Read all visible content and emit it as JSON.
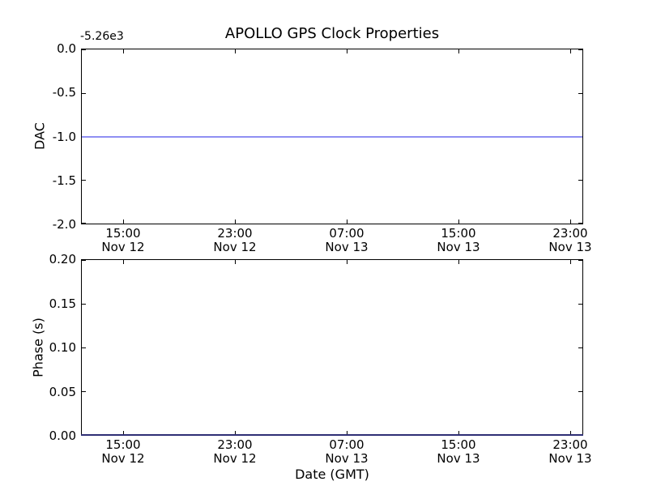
{
  "title": "APOLLO GPS Clock Properties",
  "chart_data": [
    {
      "type": "line",
      "title": "APOLLO GPS Clock Properties",
      "ylabel": "DAC",
      "xlabel": "",
      "offset_text": "-5.26e3",
      "ylim": [
        -2.0,
        0.0
      ],
      "ytick_labels": [
        "0.0",
        "-0.5",
        "-1.0",
        "-1.5",
        "-2.0"
      ],
      "x_tick_times": [
        "15:00",
        "23:00",
        "07:00",
        "15:00",
        "23:00"
      ],
      "x_tick_dates": [
        "Nov 12",
        "Nov 12",
        "Nov 13",
        "Nov 13",
        "Nov 13"
      ],
      "xlim": [
        "Nov 12 12:00",
        "Nov 13 24:00"
      ],
      "grid": false,
      "legend": "none",
      "series": [
        {
          "name": "DAC",
          "constant_y": -1.0,
          "actual_value_with_offset": -5261.0,
          "color": "#8f8ff2",
          "description": "flat horizontal line at DAC = -1.0 (axis offset -5.26e3) spanning full time range"
        }
      ]
    },
    {
      "type": "line",
      "ylabel": "Phase (s)",
      "xlabel": "Date (GMT)",
      "ylim": [
        0.0,
        0.2
      ],
      "ytick_labels": [
        "0.20",
        "0.15",
        "0.10",
        "0.05",
        "0.00"
      ],
      "x_tick_times": [
        "15:00",
        "23:00",
        "07:00",
        "15:00",
        "23:00"
      ],
      "x_tick_dates": [
        "Nov 12",
        "Nov 12",
        "Nov 13",
        "Nov 13",
        "Nov 13"
      ],
      "xlim": [
        "Nov 12 12:00",
        "Nov 13 24:00"
      ],
      "grid": false,
      "legend": "none",
      "series": [
        {
          "name": "Phase",
          "constant_y": 0.0,
          "color": "#2e2e75",
          "description": "flat line at Phase = 0.00 s lying on the bottom axis spine (appears navy over black spine)"
        }
      ]
    }
  ]
}
